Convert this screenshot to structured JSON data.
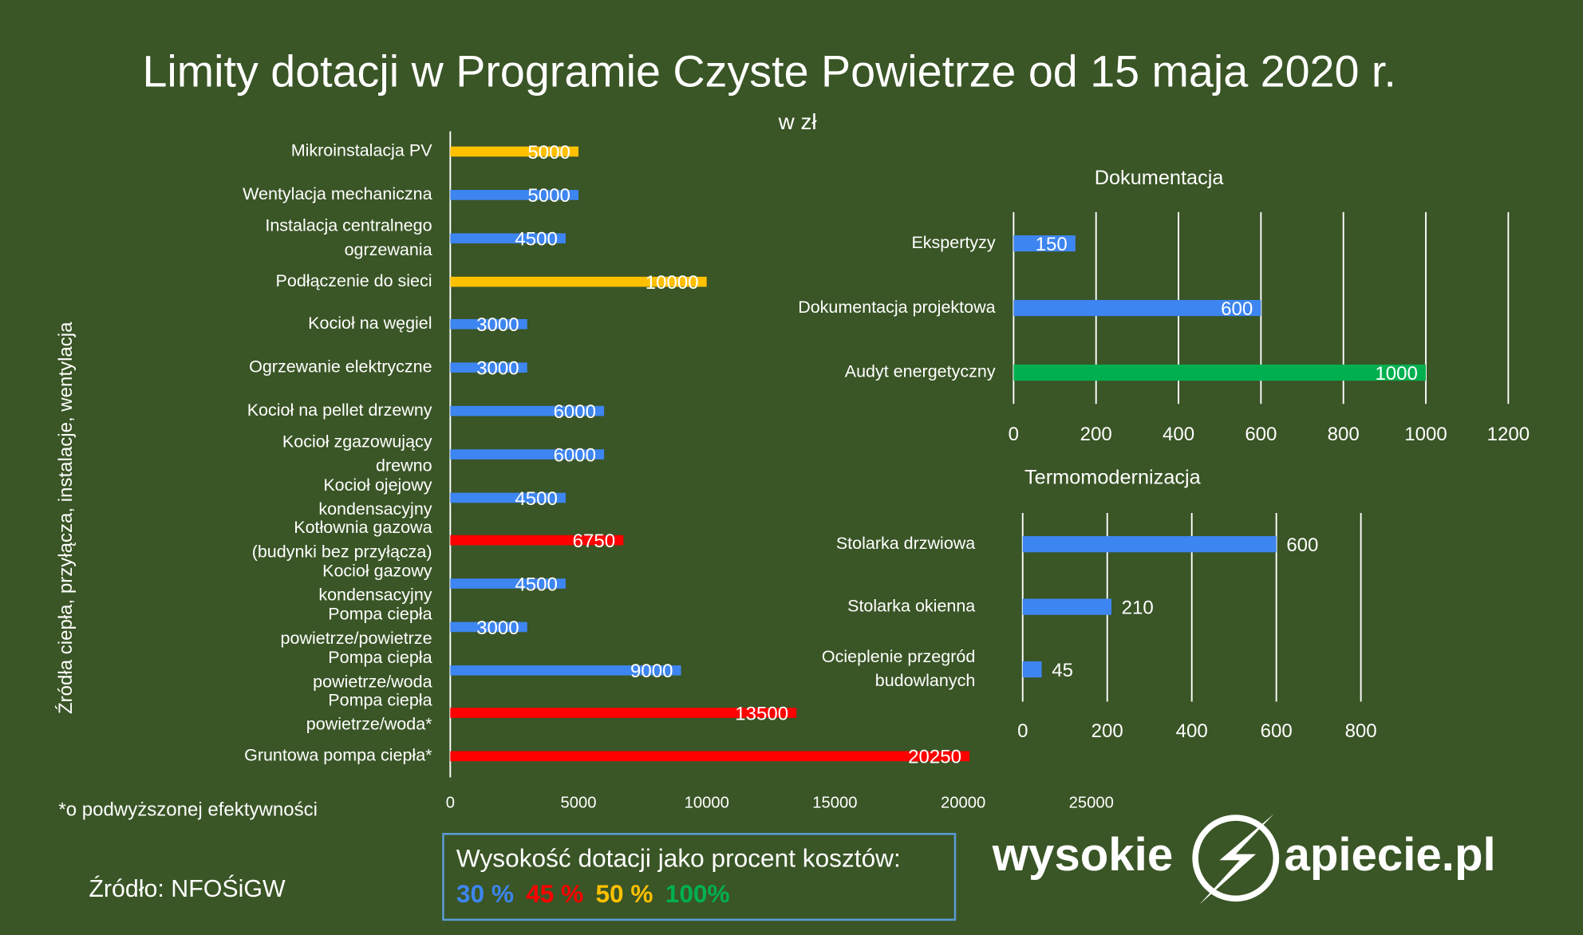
{
  "title": "Limity dotacji w Programie Czyste Powietrze od 15 maja 2020 r.",
  "subtitle": "w zł",
  "footnote": "*o podwyższonej efektywności",
  "source": "Źródło: NFOŚiGW",
  "legend": {
    "title": "Wysokość dotacji jako procent kosztów:",
    "items": [
      {
        "label": "30 %",
        "color": "#3d85f0"
      },
      {
        "label": "45 %",
        "color": "#ff0000"
      },
      {
        "label": "50 %",
        "color": "#ffc000"
      },
      {
        "label": "100%",
        "color": "#00b050"
      }
    ]
  },
  "logo": {
    "left": "wysokie",
    "right": "apiecie.pl"
  },
  "chart_data": [
    {
      "type": "bar",
      "orientation": "horizontal",
      "ylabel": "Źródła ciepła, przyłącza, instalacje, wentylacja",
      "categories": [
        "Mikroinstalacja PV",
        "Wentylacja mechaniczna",
        "Instalacja centralnego ogrzewania",
        "Podłączenie do sieci",
        "Kocioł na węgiel",
        "Ogrzewanie elektryczne",
        "Kocioł na pellet drzewny",
        "Kocioł zgazowujący drewno",
        "Kocioł ojejowy kondensacyjny",
        "Kotłownia gazowa (budynki bez przyłącza)",
        "Kocioł gazowy kondensacyjny",
        "Pompa ciepła powietrze/powietrze",
        "Pompa ciepła powietrze/woda",
        "Pompa ciepła powietrze/woda*",
        "Gruntowa pompa ciepła*"
      ],
      "values": [
        5000,
        5000,
        4500,
        10000,
        3000,
        3000,
        6000,
        6000,
        4500,
        6750,
        4500,
        3000,
        9000,
        13500,
        20250
      ],
      "colors": [
        "#ffc000",
        "#3d85f0",
        "#3d85f0",
        "#ffc000",
        "#3d85f0",
        "#3d85f0",
        "#3d85f0",
        "#3d85f0",
        "#3d85f0",
        "#ff0000",
        "#3d85f0",
        "#3d85f0",
        "#3d85f0",
        "#ff0000",
        "#ff0000"
      ],
      "xlim": [
        0,
        25000
      ],
      "xticks": [
        0,
        5000,
        10000,
        15000,
        20000,
        25000
      ],
      "grid": false
    },
    {
      "type": "bar",
      "orientation": "horizontal",
      "title": "Dokumentacja",
      "categories": [
        "Ekspertyzy",
        "Dokumentacja projektowa",
        "Audyt energetyczny"
      ],
      "values": [
        150,
        600,
        1000
      ],
      "colors": [
        "#3d85f0",
        "#3d85f0",
        "#00b050"
      ],
      "xlim": [
        0,
        1200
      ],
      "xticks": [
        0,
        200,
        400,
        600,
        800,
        1000,
        1200
      ],
      "grid": true
    },
    {
      "type": "bar",
      "orientation": "horizontal",
      "title": "Termomodernizacja",
      "categories": [
        "Stolarka drzwiowa",
        "Stolarka okienna",
        "Ocieplenie przegród budowlanych"
      ],
      "values": [
        600,
        210,
        45
      ],
      "colors": [
        "#3d85f0",
        "#3d85f0",
        "#3d85f0"
      ],
      "xlim": [
        0,
        800
      ],
      "xticks": [
        0,
        200,
        400,
        600,
        800
      ],
      "grid": true
    }
  ]
}
